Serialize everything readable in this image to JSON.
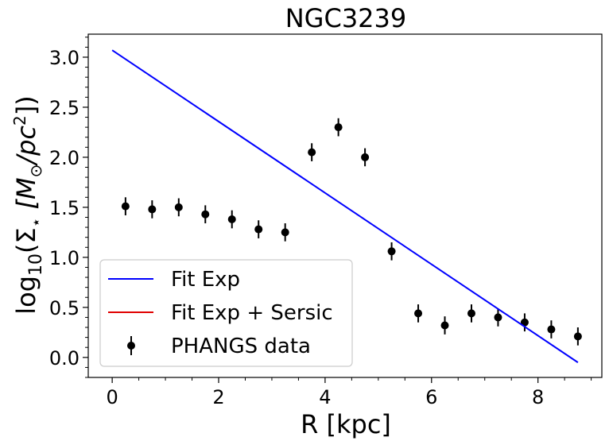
{
  "chart_data": {
    "type": "scatter",
    "title": "NGC3239",
    "xlabel": "R [kpc]",
    "ylabel_parts": {
      "prefix": "log",
      "sub": "10",
      "mid": "(Σ",
      "star": "⋆",
      "bracket": " [M",
      "sun": "⊙",
      "unit": "/pc",
      "sup": "2",
      "end": "])"
    },
    "xlim": [
      -0.45,
      9.2
    ],
    "ylim": [
      -0.2,
      3.23
    ],
    "xticks": [
      0,
      2,
      4,
      6,
      8
    ],
    "xtick_labels": [
      "0",
      "2",
      "4",
      "6",
      "8"
    ],
    "yticks": [
      0.0,
      0.5,
      1.0,
      1.5,
      2.0,
      2.5,
      3.0
    ],
    "ytick_labels": [
      "0.0",
      "0.5",
      "1.0",
      "1.5",
      "2.0",
      "2.5",
      "3.0"
    ],
    "series": [
      {
        "name": "PHANGS data",
        "kind": "errorbar",
        "color": "#000000",
        "x": [
          0.25,
          0.75,
          1.25,
          1.75,
          2.25,
          2.75,
          3.25,
          3.75,
          4.25,
          4.75,
          5.25,
          5.75,
          6.25,
          6.75,
          7.25,
          7.75,
          8.25,
          8.75
        ],
        "y": [
          1.51,
          1.48,
          1.5,
          1.43,
          1.38,
          1.28,
          1.25,
          2.05,
          2.3,
          2.0,
          1.06,
          0.44,
          0.32,
          0.44,
          0.4,
          0.35,
          0.28,
          0.21
        ],
        "yerr": [
          0.09,
          0.09,
          0.09,
          0.09,
          0.09,
          0.09,
          0.09,
          0.09,
          0.09,
          0.09,
          0.09,
          0.09,
          0.09,
          0.09,
          0.09,
          0.09,
          0.09,
          0.09
        ]
      },
      {
        "name": "Fit Exp",
        "kind": "line",
        "color": "#0000ff",
        "x": [
          0.0,
          8.75
        ],
        "y": [
          3.07,
          -0.05
        ]
      },
      {
        "name": "Fit Exp + Sersic",
        "kind": "line",
        "color": "#e00000",
        "x": [],
        "y": []
      }
    ],
    "legend": {
      "position": "lower-left",
      "entries": [
        {
          "label": "Fit Exp",
          "color": "#0000ff",
          "marker": "line"
        },
        {
          "label": "Fit Exp + Sersic",
          "color": "#e00000",
          "marker": "line"
        },
        {
          "label": "PHANGS data",
          "color": "#000000",
          "marker": "errorbar"
        }
      ]
    }
  }
}
